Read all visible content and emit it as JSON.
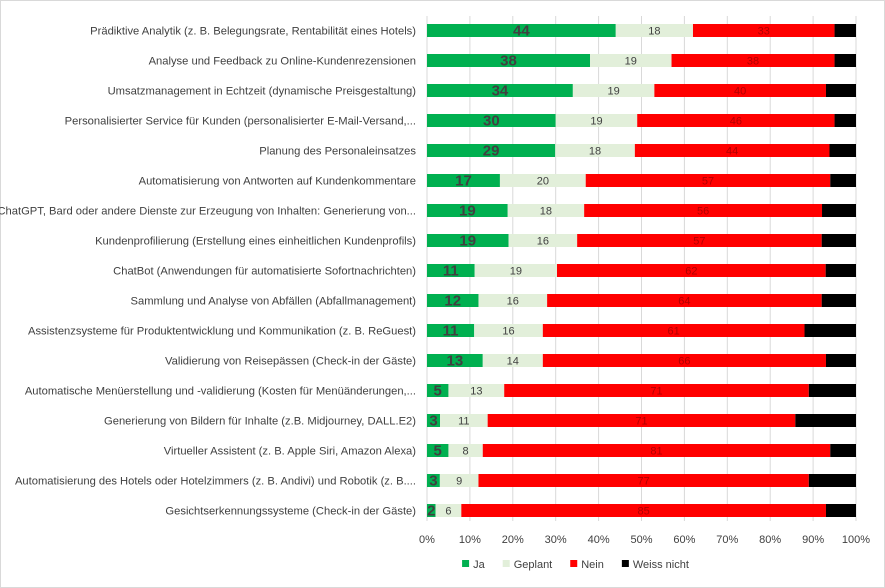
{
  "chart_data": {
    "type": "bar",
    "orientation": "horizontal",
    "stacking": "percent",
    "title": "",
    "xlabel": "",
    "ylabel": "",
    "xlim": [
      0,
      100
    ],
    "x_ticks": [
      "0%",
      "10%",
      "20%",
      "30%",
      "40%",
      "50%",
      "60%",
      "70%",
      "80%",
      "90%",
      "100%"
    ],
    "grid": true,
    "legend_position": "bottom",
    "categories": [
      "Prädiktive Analytik (z. B. Belegungsrate, Rentabilität eines Hotels)",
      "Analyse und Feedback zu Online-Kundenrezensionen",
      "Umsatzmanagement in Echtzeit (dynamische Preisgestaltung)",
      "Personalisierter Service für Kunden (personalisierter E-Mail-Versand,...",
      "Planung des Personaleinsatzes",
      "Automatisierung von Antworten auf Kundenkommentare",
      "ChatGPT, Bard oder andere Dienste zur Erzeugung von Inhalten: Generierung von...",
      "Kundenprofilierung (Erstellung eines einheitlichen Kundenprofils)",
      "ChatBot (Anwendungen für automatisierte Sofortnachrichten)",
      "Sammlung und Analyse von Abfällen (Abfallmanagement)",
      "Assistenzsysteme für Produktentwicklung und Kommunikation (z. B. ReGuest)",
      "Validierung von Reisepässen (Check-in der Gäste)",
      "Automatische Menüerstellung und -validierung (Kosten für Menüänderungen,...",
      "Generierung von Bildern für Inhalte (z.B. Midjourney, DALL.E2)",
      "Virtueller Assistent (z. B. Apple Siri, Amazon Alexa)",
      "Automatisierung des Hotels oder Hotelzimmers (z. B. Andivi) und Robotik (z. B....",
      "Gesichtserkennungssysteme (Check-in der Gäste)"
    ],
    "series": [
      {
        "name": "Ja",
        "color": "#00b050",
        "label_color": "#404040",
        "label_size": 15,
        "label_weight": "bold",
        "values": [
          44,
          38,
          34,
          30,
          29,
          17,
          19,
          19,
          11,
          12,
          11,
          13,
          5,
          3,
          5,
          3,
          2
        ]
      },
      {
        "name": "Geplant",
        "color": "#e2efda",
        "label_color": "#404040",
        "label_size": 11,
        "label_weight": "normal",
        "values": [
          18,
          19,
          19,
          19,
          18,
          20,
          18,
          16,
          19,
          16,
          16,
          14,
          13,
          11,
          8,
          9,
          6
        ]
      },
      {
        "name": "Nein",
        "color": "#ff0000",
        "label_color": "#b00000",
        "label_size": 11,
        "label_weight": "normal",
        "values": [
          33,
          38,
          40,
          46,
          44,
          57,
          56,
          57,
          62,
          64,
          61,
          66,
          71,
          71,
          81,
          77,
          85
        ]
      },
      {
        "name": "Weiss nicht",
        "color": "#000000",
        "label_color": "#000000",
        "label_size": 11,
        "label_weight": "normal",
        "values": [
          5,
          5,
          7,
          5,
          6,
          6,
          8,
          8,
          7,
          8,
          12,
          7,
          11,
          14,
          6,
          11,
          7
        ]
      }
    ]
  }
}
